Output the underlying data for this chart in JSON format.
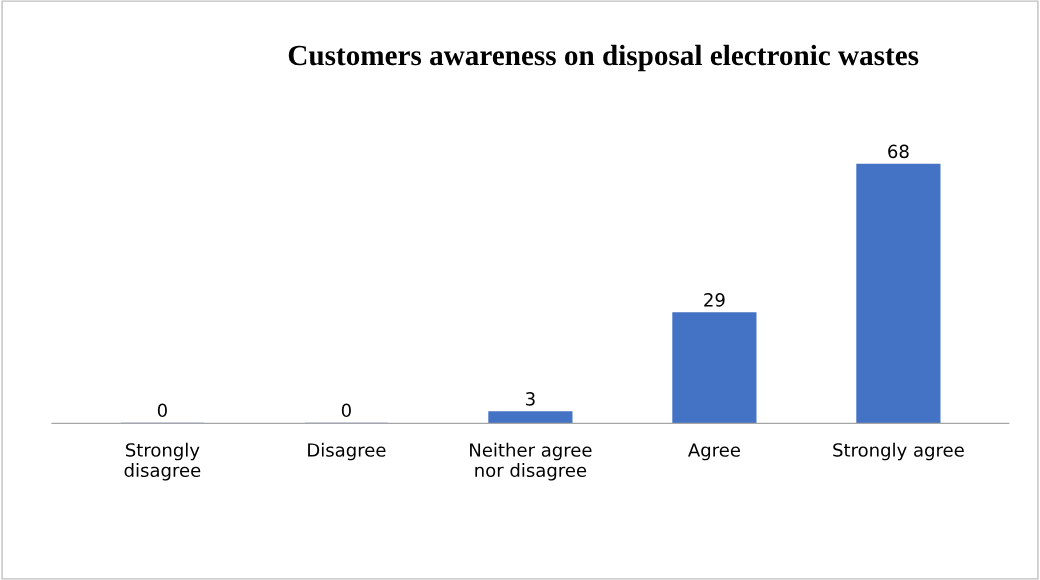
{
  "chart_data": {
    "type": "bar",
    "title": "Customers awareness on disposal electronic wastes",
    "categories": [
      "Strongly\ndisagree",
      "Disagree",
      "Neither agree\nnor disagree",
      "Agree",
      "Strongly agree"
    ],
    "values": [
      0,
      0,
      3,
      29,
      68
    ],
    "color": "#4472c4",
    "data_labels": true,
    "grid": false,
    "legend": false
  }
}
